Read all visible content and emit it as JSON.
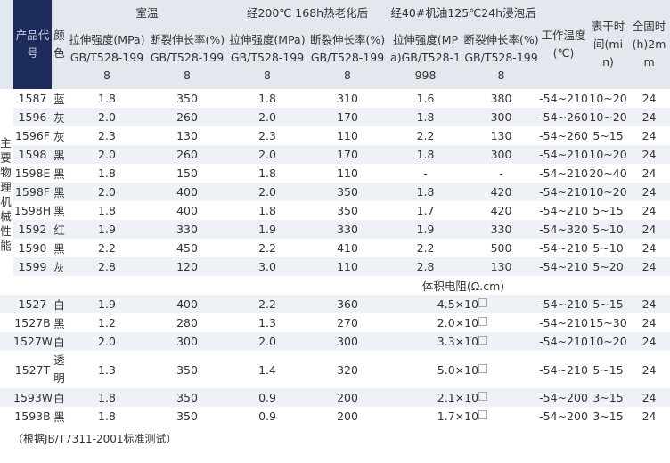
{
  "side_label": "主要物理机械性能",
  "headers": {
    "code": "产品代号",
    "color": "颜色",
    "room": "室温",
    "aged": "经200℃ 168h热老化后",
    "oil": "经40#机油125℃24h浸泡后",
    "tensile": "拉伸强度(MPa)GB/T528-1998",
    "elongation": "断裂伸长率(%)GB/T528-1998",
    "work_temp": "工作温度(℃)",
    "surface_dry": "表干时间(min)",
    "full_cure": "全固时(h)2mm"
  },
  "mechanical_rows": [
    [
      "1587",
      "蓝",
      "1.8",
      "350",
      "1.8",
      "310",
      "1.6",
      "380",
      "-54~210",
      "10~20",
      "24"
    ],
    [
      "1596",
      "灰",
      "2.0",
      "260",
      "2.0",
      "170",
      "1.8",
      "300",
      "-54~260",
      "10~20",
      "24"
    ],
    [
      "1596F",
      "灰",
      "2.3",
      "130",
      "2.3",
      "110",
      "2.2",
      "130",
      "-54~260",
      "5~15",
      "24"
    ],
    [
      "1598",
      "黑",
      "2.0",
      "260",
      "2.0",
      "170",
      "1.8",
      "300",
      "-54~210",
      "10~20",
      "24"
    ],
    [
      "1598E",
      "黑",
      "1.8",
      "150",
      "1.8",
      "110",
      "-",
      "-",
      "-54~210",
      "20~40",
      "24"
    ],
    [
      "1598F",
      "黑",
      "2.0",
      "400",
      "2.0",
      "350",
      "1.8",
      "420",
      "-54~210",
      "10~20",
      "24"
    ],
    [
      "1598H",
      "黑",
      "1.8",
      "400",
      "1.8",
      "350",
      "1.7",
      "420",
      "-54~210",
      "5~15",
      "24"
    ],
    [
      "1592",
      "红",
      "1.9",
      "330",
      "1.9",
      "330",
      "1.9",
      "330",
      "-54~320",
      "5~10",
      "24"
    ],
    [
      "1590",
      "黑",
      "2.2",
      "450",
      "2.2",
      "410",
      "2.2",
      "500",
      "-54~210",
      "5~10",
      "24"
    ],
    [
      "1599",
      "灰",
      "2.8",
      "120",
      "3.0",
      "110",
      "2.8",
      "130",
      "-54~210",
      "5~20",
      "24"
    ]
  ],
  "resistance_label": "体积电阻(Ω.cm)",
  "resistance_rows": [
    [
      "1527",
      "白",
      "1.9",
      "400",
      "2.2",
      "360",
      "4.5×10",
      "-54~210",
      "5~15",
      "24"
    ],
    [
      "1527B",
      "黑",
      "1.2",
      "280",
      "1.3",
      "270",
      "2.0×10",
      "-54~210",
      "15~30",
      "24"
    ],
    [
      "1527W",
      "白",
      "2.0",
      "300",
      "2.0",
      "300",
      "3.3×10",
      "-54~210",
      "10~20",
      "24"
    ],
    [
      "1527T",
      "透明",
      "1.3",
      "350",
      "1.4",
      "320",
      "5.0×10",
      "-54~210",
      "5~15",
      "24"
    ],
    [
      "1593W",
      "白",
      "1.8",
      "350",
      "0.9",
      "200",
      "2.1×10",
      "-54~200",
      "3~15",
      "24"
    ],
    [
      "1593B",
      "黑",
      "1.8",
      "350",
      "0.9",
      "200",
      "1.7×10",
      "-54~200",
      "3~15",
      "24"
    ]
  ],
  "footnote": "（根据JB/T7311-2001标准测试）"
}
